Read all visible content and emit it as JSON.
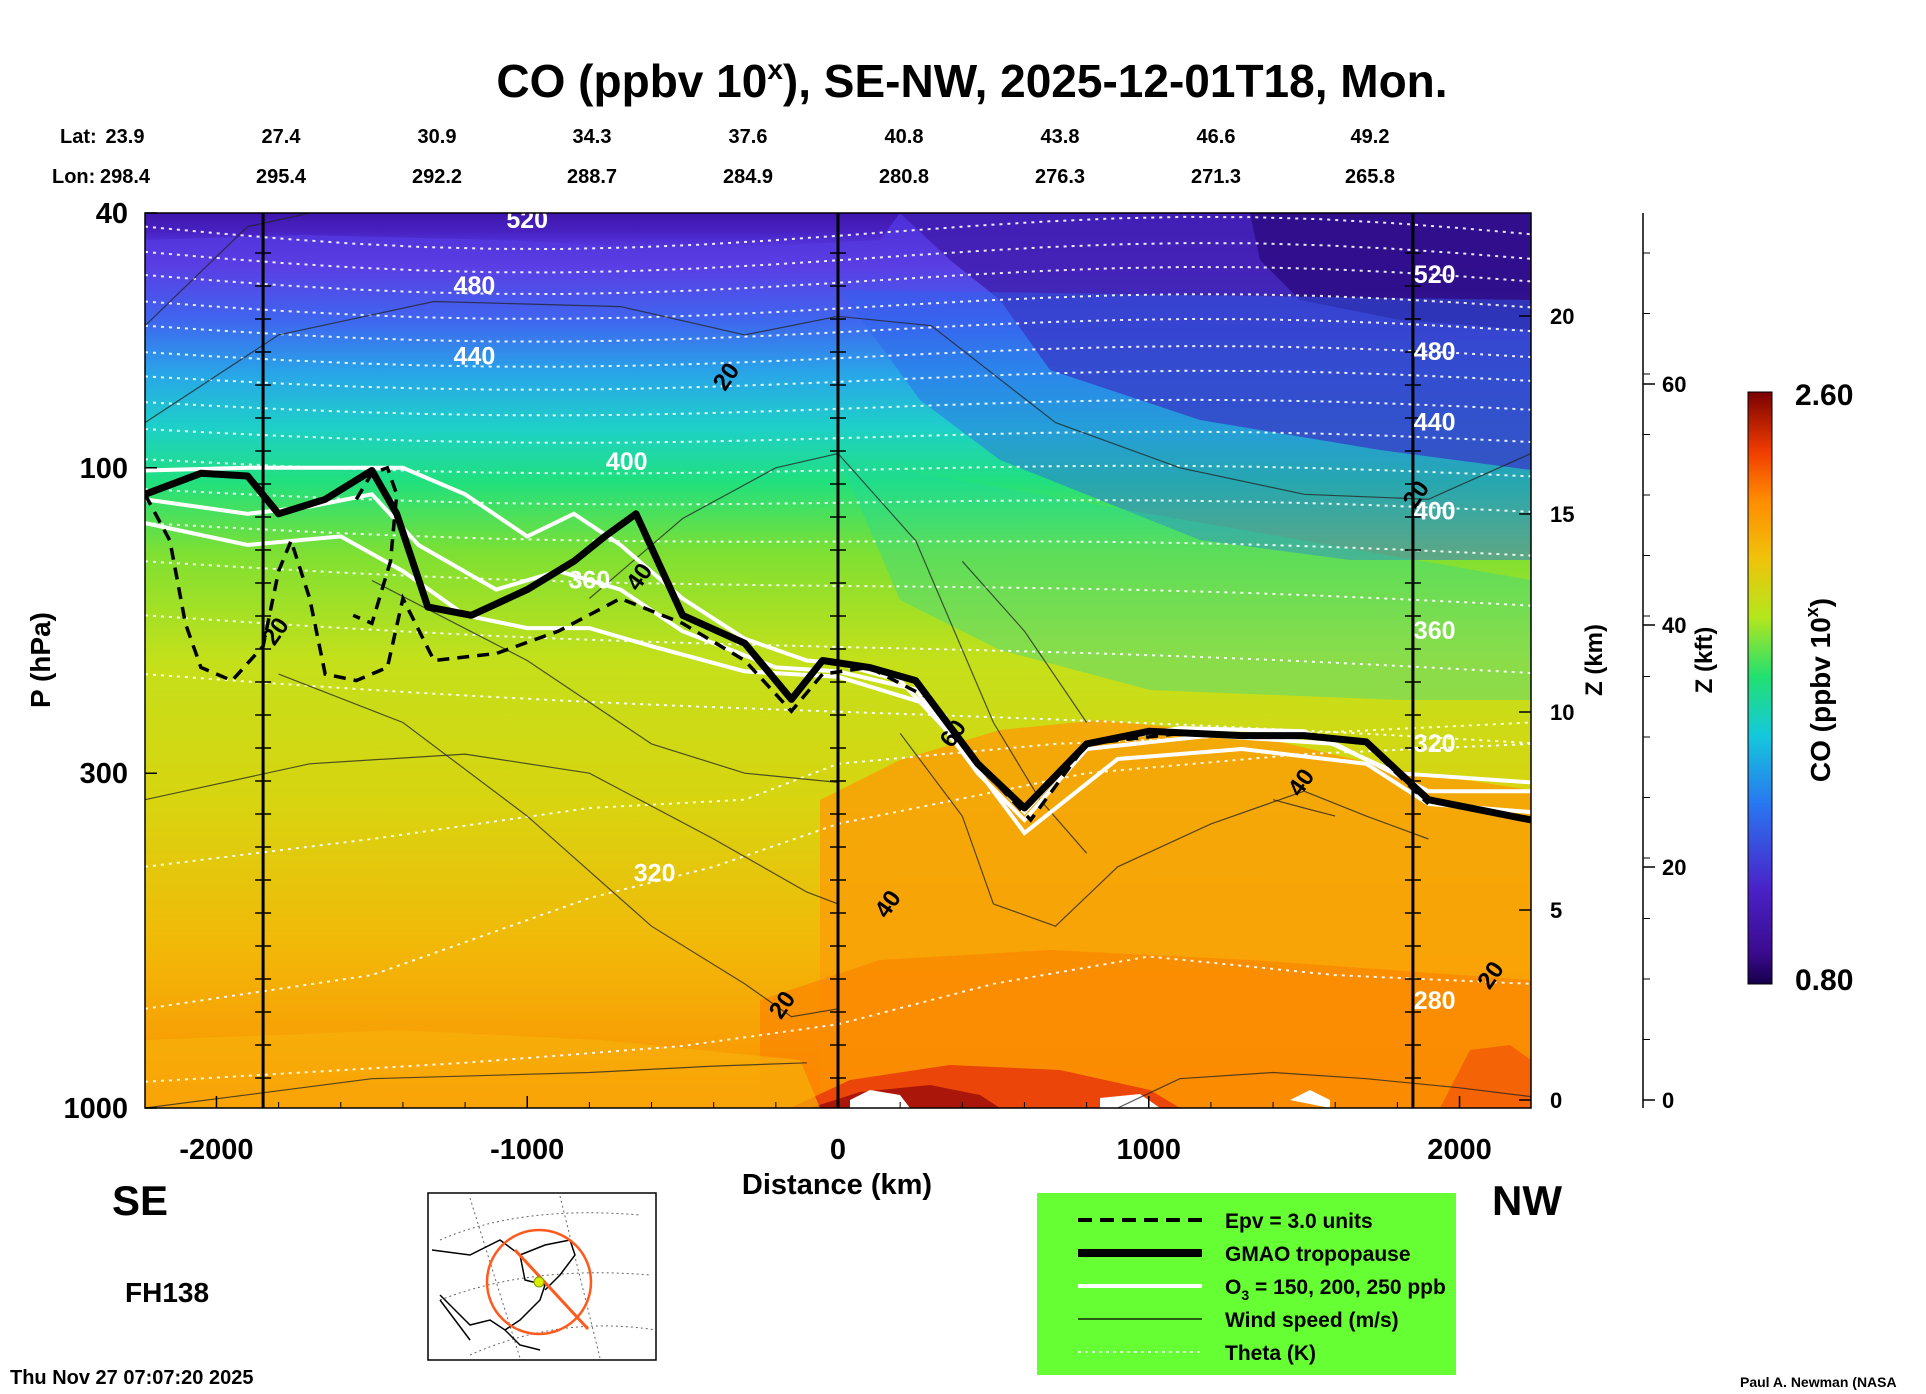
{
  "title": "CO (ppbv 10",
  "title_sup": "x",
  "title_rest": "), SE-NW, 2025-12-01T18, Mon.",
  "lat_label": "Lat:",
  "lon_label": "Lon:",
  "lat_values": [
    "23.9",
    "27.4",
    "30.9",
    "34.3",
    "37.6",
    "40.8",
    "43.8",
    "46.6",
    "49.2"
  ],
  "lon_values": [
    "298.4",
    "295.4",
    "292.2",
    "288.7",
    "284.9",
    "280.8",
    "276.3",
    "271.3",
    "265.8"
  ],
  "direction_left": "SE",
  "direction_right": "NW",
  "forecast_hour": "FH138",
  "timestamp": "Thu Nov 27 07:07:20 2025",
  "credit": "Paul A. Newman (NASA",
  "chart_data": {
    "type": "heatmap",
    "title": "CO (ppbv 10^x), SE-NW, 2025-12-01T18, Mon.",
    "xlabel": "Distance (km)",
    "ylabel": "P (hPa)",
    "xlim": [
      -2230,
      2230
    ],
    "ylim_hPa": [
      1000,
      40
    ],
    "y_scale": "log",
    "x_ticks": [
      "-2000",
      "-1000",
      "0",
      "1000",
      "2000"
    ],
    "x_tick_values": [
      -2000,
      -1000,
      0,
      1000,
      2000
    ],
    "y_ticks": [
      "40",
      "100",
      "300",
      "1000"
    ],
    "y_tick_values": [
      40,
      100,
      300,
      1000
    ],
    "z_km_label": "Z (km)",
    "z_km_ticks": [
      "0",
      "5",
      "10",
      "15",
      "20"
    ],
    "z_kft_label": "Z (kft)",
    "z_kft_ticks": [
      "0",
      "20",
      "40",
      "60"
    ],
    "colorbar": {
      "label": "CO (ppbv 10",
      "label_sup": "x",
      "label_end": ")",
      "min": "0.80",
      "max": "2.60",
      "min_value": 0.8,
      "max_value": 2.6
    },
    "vertical_lines_km": [
      -1850,
      0,
      1850
    ],
    "theta_labels": [
      {
        "text": "520",
        "x": -1000,
        "p": 41
      },
      {
        "text": "480",
        "x": -1170,
        "p": 52
      },
      {
        "text": "440",
        "x": -1170,
        "p": 67
      },
      {
        "text": "400",
        "x": -680,
        "p": 98
      },
      {
        "text": "360",
        "x": -800,
        "p": 150
      },
      {
        "text": "320",
        "x": -590,
        "p": 430
      },
      {
        "text": "520",
        "x": 1920,
        "p": 50
      },
      {
        "text": "480",
        "x": 1920,
        "p": 66
      },
      {
        "text": "440",
        "x": 1920,
        "p": 85
      },
      {
        "text": "400",
        "x": 1920,
        "p": 117
      },
      {
        "text": "360",
        "x": 1920,
        "p": 180
      },
      {
        "text": "320",
        "x": 1920,
        "p": 270
      },
      {
        "text": "280",
        "x": 1920,
        "p": 680
      }
    ],
    "wind_labels": [
      {
        "text": "20",
        "x": -360,
        "p": 72
      },
      {
        "text": "20",
        "x": -1810,
        "p": 180
      },
      {
        "text": "40",
        "x": -640,
        "p": 148
      },
      {
        "text": "60",
        "x": 370,
        "p": 260
      },
      {
        "text": "40",
        "x": 1490,
        "p": 310
      },
      {
        "text": "40",
        "x": 160,
        "p": 480
      },
      {
        "text": "20",
        "x": -180,
        "p": 690
      },
      {
        "text": "20",
        "x": 1860,
        "p": 110
      },
      {
        "text": "20",
        "x": 2100,
        "p": 620
      }
    ],
    "tropopause_p_hPa": {
      "x": [
        -2230,
        -2050,
        -1900,
        -1800,
        -1650,
        -1500,
        -1420,
        -1320,
        -1180,
        -1000,
        -850,
        -750,
        -650,
        -500,
        -300,
        -150,
        -50,
        100,
        250,
        450,
        600,
        800,
        1000,
        1300,
        1500,
        1700,
        1900,
        2230
      ],
      "p": [
        110,
        102,
        103,
        118,
        112,
        101,
        118,
        165,
        170,
        155,
        140,
        128,
        118,
        170,
        188,
        230,
        200,
        205,
        215,
        290,
        340,
        270,
        258,
        262,
        262,
        268,
        330,
        355
      ]
    },
    "legend": [
      {
        "label": "Epv = 3.0 units",
        "style": "dashed-black"
      },
      {
        "label": "GMAO tropopause",
        "style": "thick-black"
      },
      {
        "label": "O3 = 150, 200, 250 ppb",
        "style": "white"
      },
      {
        "label": "Wind speed (m/s)",
        "style": "thin-black"
      },
      {
        "label": "Theta (K)",
        "style": "dotted-white"
      }
    ],
    "legend_background": "#66ff33"
  }
}
